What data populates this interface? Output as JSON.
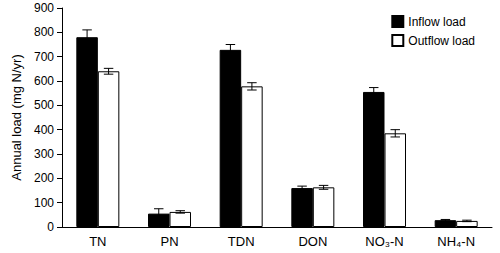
{
  "chart_data": {
    "type": "bar",
    "y_label": "Annual load (mg N/yr)",
    "categories": [
      "TN",
      "PN",
      "TDN",
      "DON",
      "NO₃-N",
      "NH₄-N"
    ],
    "series": [
      {
        "name": "Inflow load",
        "color": "#000000",
        "values": [
          780,
          55,
          728,
          160,
          555,
          28
        ],
        "errors": [
          30,
          20,
          22,
          8,
          18,
          3
        ]
      },
      {
        "name": "Outflow load",
        "color": "#ffffff",
        "values": [
          640,
          62,
          578,
          163,
          385,
          25
        ],
        "errors": [
          12,
          5,
          15,
          8,
          15,
          3
        ]
      }
    ],
    "ylim": [
      0,
      900
    ],
    "yticks": [
      0,
      100,
      200,
      300,
      400,
      500,
      600,
      700,
      800,
      900
    ],
    "grid": false,
    "legend": "upper right"
  }
}
